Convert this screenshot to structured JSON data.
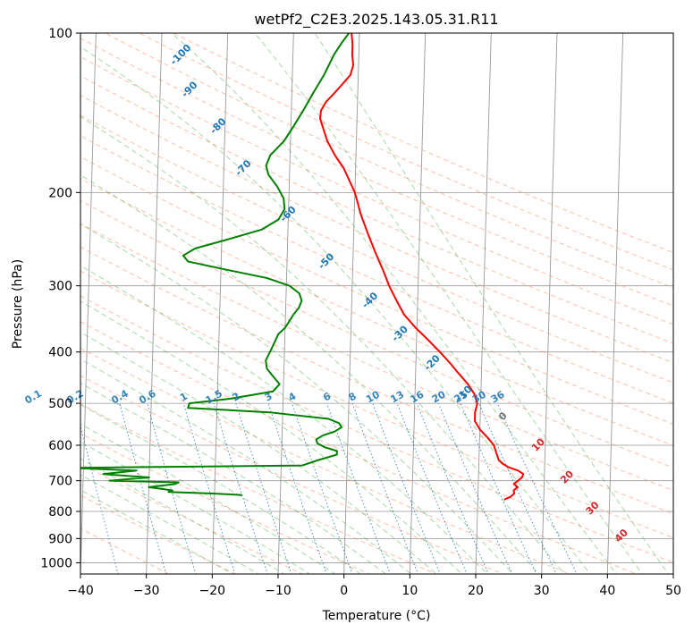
{
  "chart_data": {
    "type": "line",
    "title": "wetPf2_C2E3.2025.143.05.31.R11",
    "xlabel": "Temperature (°C)",
    "ylabel": "Pressure (hPa)",
    "xlim": [
      -40,
      50
    ],
    "ylim": [
      1050,
      100
    ],
    "y_scale": "log",
    "grid": true,
    "x_ticks": [
      "−40",
      "−30",
      "−20",
      "−10",
      "0",
      "10",
      "20",
      "30",
      "40",
      "50"
    ],
    "x_tick_values": [
      -40,
      -30,
      -20,
      -10,
      0,
      10,
      20,
      30,
      40,
      50
    ],
    "y_ticks": [
      "100",
      "200",
      "300",
      "400",
      "500",
      "600",
      "700",
      "800",
      "900",
      "1000"
    ],
    "y_tick_values": [
      100,
      200,
      300,
      400,
      500,
      600,
      700,
      800,
      900,
      1000
    ],
    "colors": {
      "temperature": "#ff0000",
      "dewpoint": "#008000",
      "isotherm": "#999999",
      "dry_adiabat": "#ff7f50",
      "moist_adiabat": "#2ca02c",
      "mixing_ratio": "#1f77b4",
      "height_label": "#1f77b4",
      "temp_label": "#d62728"
    },
    "series": [
      {
        "points": [
          [
            760,
            24.0
          ],
          [
            750,
            25.0
          ],
          [
            740,
            25.5
          ],
          [
            730,
            25.4
          ],
          [
            720,
            26.0
          ],
          [
            710,
            25.4
          ],
          [
            700,
            26.0
          ],
          [
            690,
            26.6
          ],
          [
            680,
            26.8
          ],
          [
            670,
            26.0
          ],
          [
            660,
            24.5
          ],
          [
            650,
            23.6
          ],
          [
            640,
            23.0
          ],
          [
            620,
            22.6
          ],
          [
            600,
            22.2
          ],
          [
            580,
            21.2
          ],
          [
            560,
            20.0
          ],
          [
            540,
            19.2
          ],
          [
            520,
            19.2
          ],
          [
            500,
            19.5
          ],
          [
            480,
            19.0
          ],
          [
            460,
            18.0
          ],
          [
            440,
            16.6
          ],
          [
            420,
            15.2
          ],
          [
            400,
            13.6
          ],
          [
            380,
            11.8
          ],
          [
            360,
            9.8
          ],
          [
            340,
            8.0
          ],
          [
            320,
            6.8
          ],
          [
            300,
            5.6
          ],
          [
            280,
            4.6
          ],
          [
            260,
            3.4
          ],
          [
            240,
            2.2
          ],
          [
            220,
            1.0
          ],
          [
            200,
            0.0
          ],
          [
            180,
            -1.8
          ],
          [
            170,
            -3.2
          ],
          [
            160,
            -4.4
          ],
          [
            150,
            -5.2
          ],
          [
            145,
            -5.6
          ],
          [
            140,
            -5.5
          ],
          [
            135,
            -4.8
          ],
          [
            130,
            -3.6
          ],
          [
            125,
            -2.4
          ],
          [
            120,
            -1.2
          ],
          [
            115,
            -0.8
          ],
          [
            110,
            -1.0
          ],
          [
            105,
            -1.0
          ],
          [
            100,
            -1.2
          ]
        ]
      },
      {
        "points": [
          [
            745,
            -15.8
          ],
          [
            740,
            -20.2
          ],
          [
            735,
            -27.0
          ],
          [
            730,
            -26.4
          ],
          [
            720,
            -30.0
          ],
          [
            710,
            -26.0
          ],
          [
            705,
            -25.5
          ],
          [
            700,
            -36.0
          ],
          [
            690,
            -30.0
          ],
          [
            680,
            -37.0
          ],
          [
            670,
            -32.0
          ],
          [
            662,
            -42.0
          ],
          [
            655,
            -6.8
          ],
          [
            640,
            -4.4
          ],
          [
            625,
            -1.6
          ],
          [
            615,
            -1.6
          ],
          [
            605,
            -3.5
          ],
          [
            595,
            -4.6
          ],
          [
            585,
            -4.8
          ],
          [
            575,
            -3.8
          ],
          [
            565,
            -2.0
          ],
          [
            555,
            -1.0
          ],
          [
            545,
            -1.4
          ],
          [
            535,
            -3.0
          ],
          [
            520,
            -12.0
          ],
          [
            510,
            -24.4
          ],
          [
            500,
            -24.2
          ],
          [
            490,
            -18.0
          ],
          [
            475,
            -11.6
          ],
          [
            460,
            -10.6
          ],
          [
            445,
            -11.6
          ],
          [
            430,
            -12.6
          ],
          [
            415,
            -12.8
          ],
          [
            400,
            -12.2
          ],
          [
            380,
            -11.4
          ],
          [
            370,
            -11.0
          ],
          [
            360,
            -10.0
          ],
          [
            350,
            -9.4
          ],
          [
            340,
            -8.8
          ],
          [
            330,
            -8.0
          ],
          [
            320,
            -7.6
          ],
          [
            310,
            -8.0
          ],
          [
            300,
            -9.5
          ],
          [
            290,
            -13.0
          ],
          [
            280,
            -19.0
          ],
          [
            270,
            -25.0
          ],
          [
            263,
            -25.8
          ],
          [
            255,
            -24.0
          ],
          [
            245,
            -19.0
          ],
          [
            235,
            -14.0
          ],
          [
            225,
            -11.5
          ],
          [
            215,
            -10.6
          ],
          [
            205,
            -10.8
          ],
          [
            195,
            -11.8
          ],
          [
            185,
            -13.2
          ],
          [
            178,
            -13.6
          ],
          [
            170,
            -13.0
          ],
          [
            160,
            -11.0
          ],
          [
            150,
            -9.6
          ],
          [
            140,
            -8.2
          ],
          [
            130,
            -6.8
          ],
          [
            120,
            -5.2
          ],
          [
            110,
            -3.8
          ],
          [
            105,
            -2.8
          ],
          [
            100,
            -1.6
          ]
        ]
      }
    ],
    "height_labels": [
      "-100",
      "-90",
      "-80",
      "-70",
      "-60",
      "-50",
      "-40",
      "-30",
      "-20",
      "-10",
      "0",
      "10",
      "20",
      "30",
      "40"
    ],
    "height_label_values": [
      -100,
      -90,
      -80,
      -70,
      -60,
      -50,
      -40,
      -30,
      -20,
      -10,
      0,
      10,
      20,
      30,
      40
    ],
    "mixing_ratio_labels": [
      "0.1",
      "0.2",
      "0.4",
      "0.6",
      "1",
      "1.5",
      "2",
      "3",
      "4",
      "6",
      "8",
      "10",
      "13",
      "16",
      "20",
      "25",
      "30",
      "36"
    ],
    "mixing_ratio_values": [
      0.1,
      0.2,
      0.4,
      0.6,
      1,
      1.5,
      2,
      3,
      4,
      6,
      8,
      10,
      13,
      16,
      20,
      25,
      30,
      36
    ]
  }
}
